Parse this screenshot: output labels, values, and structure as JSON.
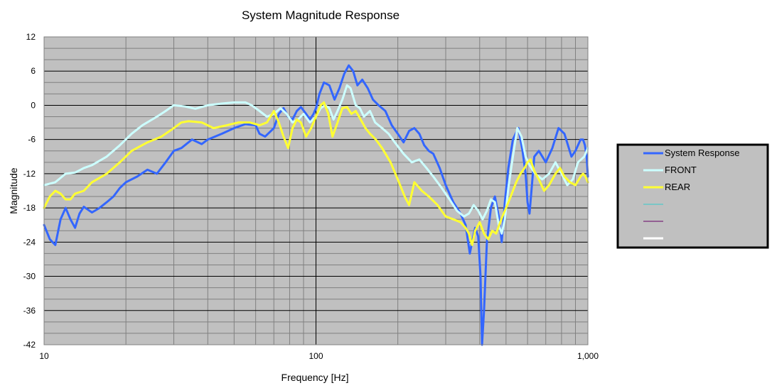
{
  "chart_data": {
    "type": "line",
    "title": "System Magnitude Response",
    "xlabel": "Frequency [Hz]",
    "ylabel": "Magnitude",
    "x_scale": "log",
    "xlim": [
      10,
      1000
    ],
    "ylim": [
      -42,
      12
    ],
    "x_ticks": [
      {
        "value": 10,
        "label": "10"
      },
      {
        "value": 100,
        "label": "100"
      },
      {
        "value": 1000,
        "label": "1,000"
      }
    ],
    "y_ticks": [
      {
        "value": 12,
        "label": "12"
      },
      {
        "value": 6,
        "label": "6"
      },
      {
        "value": 0,
        "label": "0"
      },
      {
        "value": -6,
        "label": "-6"
      },
      {
        "value": -12,
        "label": "-12"
      },
      {
        "value": -18,
        "label": "-18"
      },
      {
        "value": -24,
        "label": "-24"
      },
      {
        "value": -30,
        "label": "-30"
      },
      {
        "value": -36,
        "label": "-36"
      },
      {
        "value": -42,
        "label": "-42"
      }
    ],
    "grid": true,
    "plot_background": "#c0c0c0",
    "legend_position": "right",
    "series": [
      {
        "name": "System Response",
        "color": "#3366ff",
        "points": [
          [
            10,
            -21
          ],
          [
            10.5,
            -23.5
          ],
          [
            11,
            -24.5
          ],
          [
            11.5,
            -20
          ],
          [
            12,
            -18
          ],
          [
            12.5,
            -20
          ],
          [
            13,
            -21.5
          ],
          [
            13.5,
            -19
          ],
          [
            14,
            -17.8
          ],
          [
            15,
            -18.8
          ],
          [
            16,
            -18
          ],
          [
            17,
            -17
          ],
          [
            18,
            -16
          ],
          [
            19,
            -14.5
          ],
          [
            20,
            -13.5
          ],
          [
            22,
            -12.5
          ],
          [
            24,
            -11.3
          ],
          [
            26,
            -12
          ],
          [
            28,
            -10
          ],
          [
            30,
            -8
          ],
          [
            32,
            -7.5
          ],
          [
            35,
            -6
          ],
          [
            38,
            -6.8
          ],
          [
            40,
            -6
          ],
          [
            45,
            -5
          ],
          [
            50,
            -4
          ],
          [
            55,
            -3.3
          ],
          [
            60,
            -3.5
          ],
          [
            62,
            -5
          ],
          [
            65,
            -5.5
          ],
          [
            70,
            -4
          ],
          [
            73,
            -1.5
          ],
          [
            76,
            -0.5
          ],
          [
            79,
            -2
          ],
          [
            82,
            -2.5
          ],
          [
            85,
            -1
          ],
          [
            88,
            -0.3
          ],
          [
            92,
            -1.5
          ],
          [
            95,
            -2.5
          ],
          [
            98,
            -1.5
          ],
          [
            100,
            -0.5
          ],
          [
            103,
            2
          ],
          [
            107,
            4
          ],
          [
            112,
            3.5
          ],
          [
            117,
            1
          ],
          [
            122,
            3
          ],
          [
            127,
            5.5
          ],
          [
            132,
            7
          ],
          [
            137,
            6
          ],
          [
            142,
            3.5
          ],
          [
            148,
            4.5
          ],
          [
            155,
            3
          ],
          [
            162,
            1
          ],
          [
            170,
            0
          ],
          [
            180,
            -1
          ],
          [
            190,
            -3.5
          ],
          [
            200,
            -5
          ],
          [
            210,
            -6.5
          ],
          [
            220,
            -4.5
          ],
          [
            230,
            -4
          ],
          [
            240,
            -5
          ],
          [
            250,
            -7
          ],
          [
            260,
            -8
          ],
          [
            270,
            -8.5
          ],
          [
            285,
            -11
          ],
          [
            300,
            -14
          ],
          [
            320,
            -17
          ],
          [
            340,
            -19
          ],
          [
            355,
            -21
          ],
          [
            368,
            -26
          ],
          [
            375,
            -24
          ],
          [
            385,
            -21.5
          ],
          [
            395,
            -23
          ],
          [
            403,
            -30
          ],
          [
            408,
            -42
          ],
          [
            415,
            -36
          ],
          [
            425,
            -24
          ],
          [
            440,
            -18
          ],
          [
            455,
            -16
          ],
          [
            470,
            -19.5
          ],
          [
            482,
            -24
          ],
          [
            495,
            -17
          ],
          [
            510,
            -11
          ],
          [
            530,
            -6
          ],
          [
            555,
            -4
          ],
          [
            575,
            -8
          ],
          [
            590,
            -12
          ],
          [
            600,
            -17
          ],
          [
            610,
            -19
          ],
          [
            620,
            -15
          ],
          [
            635,
            -9
          ],
          [
            660,
            -8
          ],
          [
            700,
            -10
          ],
          [
            740,
            -7.5
          ],
          [
            780,
            -4
          ],
          [
            820,
            -5
          ],
          [
            870,
            -9
          ],
          [
            900,
            -8
          ],
          [
            940,
            -6
          ],
          [
            960,
            -6
          ],
          [
            975,
            -7
          ],
          [
            990,
            -9
          ],
          [
            1000,
            -12.5
          ]
        ]
      },
      {
        "name": "FRONT",
        "color": "#ccffff",
        "points": [
          [
            10,
            -14
          ],
          [
            11,
            -13.5
          ],
          [
            12,
            -12
          ],
          [
            13,
            -11.8
          ],
          [
            14,
            -11
          ],
          [
            15,
            -10.5
          ],
          [
            17,
            -9
          ],
          [
            19,
            -7
          ],
          [
            21,
            -5
          ],
          [
            23,
            -3.5
          ],
          [
            26,
            -2
          ],
          [
            28,
            -1
          ],
          [
            30,
            0
          ],
          [
            33,
            -0.2
          ],
          [
            36,
            -0.6
          ],
          [
            40,
            0
          ],
          [
            45,
            0.3
          ],
          [
            50,
            0.5
          ],
          [
            55,
            0.5
          ],
          [
            58,
            0
          ],
          [
            62,
            -1
          ],
          [
            66,
            -2
          ],
          [
            70,
            -1.5
          ],
          [
            74,
            -0.5
          ],
          [
            78,
            -1.5
          ],
          [
            82,
            -3
          ],
          [
            86,
            -2.5
          ],
          [
            90,
            -1.5
          ],
          [
            95,
            -3
          ],
          [
            100,
            -2
          ],
          [
            104,
            -0.5
          ],
          [
            108,
            0
          ],
          [
            112,
            -0.5
          ],
          [
            116,
            -2.5
          ],
          [
            120,
            -1
          ],
          [
            125,
            1
          ],
          [
            130,
            3.5
          ],
          [
            134,
            3
          ],
          [
            140,
            0
          ],
          [
            145,
            -0.5
          ],
          [
            150,
            -2
          ],
          [
            158,
            -1
          ],
          [
            165,
            -3
          ],
          [
            175,
            -4
          ],
          [
            185,
            -5
          ],
          [
            195,
            -6.5
          ],
          [
            210,
            -8.5
          ],
          [
            225,
            -10
          ],
          [
            240,
            -9.5
          ],
          [
            255,
            -11
          ],
          [
            270,
            -12.5
          ],
          [
            290,
            -14.5
          ],
          [
            310,
            -16.5
          ],
          [
            330,
            -18.5
          ],
          [
            350,
            -19.5
          ],
          [
            365,
            -19
          ],
          [
            380,
            -17.5
          ],
          [
            395,
            -18.5
          ],
          [
            410,
            -20
          ],
          [
            425,
            -18.5
          ],
          [
            440,
            -16.5
          ],
          [
            455,
            -17
          ],
          [
            470,
            -21
          ],
          [
            482,
            -22.5
          ],
          [
            495,
            -20
          ],
          [
            510,
            -14.5
          ],
          [
            530,
            -9
          ],
          [
            550,
            -4
          ],
          [
            570,
            -5.5
          ],
          [
            590,
            -9
          ],
          [
            610,
            -10.5
          ],
          [
            640,
            -12
          ],
          [
            680,
            -13
          ],
          [
            720,
            -12
          ],
          [
            760,
            -10
          ],
          [
            800,
            -12
          ],
          [
            840,
            -14
          ],
          [
            880,
            -13
          ],
          [
            920,
            -10
          ],
          [
            970,
            -9
          ],
          [
            1000,
            -7.5
          ]
        ]
      },
      {
        "name": "REAR",
        "color": "#ffff33",
        "points": [
          [
            10,
            -18
          ],
          [
            10.5,
            -16
          ],
          [
            11,
            -15
          ],
          [
            11.5,
            -15.5
          ],
          [
            12,
            -16.5
          ],
          [
            12.5,
            -16.5
          ],
          [
            13,
            -15.5
          ],
          [
            14,
            -15
          ],
          [
            15,
            -13.5
          ],
          [
            17,
            -12
          ],
          [
            19,
            -10
          ],
          [
            21,
            -8
          ],
          [
            24,
            -6.5
          ],
          [
            27,
            -5.5
          ],
          [
            30,
            -4
          ],
          [
            32,
            -3
          ],
          [
            34,
            -2.8
          ],
          [
            38,
            -3
          ],
          [
            42,
            -4
          ],
          [
            47,
            -3.5
          ],
          [
            52,
            -3
          ],
          [
            57,
            -3
          ],
          [
            62,
            -3.5
          ],
          [
            66,
            -3
          ],
          [
            70,
            -1
          ],
          [
            73,
            -3
          ],
          [
            76,
            -5.5
          ],
          [
            79,
            -7.5
          ],
          [
            82,
            -4
          ],
          [
            85,
            -2.5
          ],
          [
            88,
            -3
          ],
          [
            92,
            -5.5
          ],
          [
            96,
            -4
          ],
          [
            100,
            -2
          ],
          [
            104,
            0
          ],
          [
            107,
            0.5
          ],
          [
            111,
            -1.5
          ],
          [
            115,
            -5.5
          ],
          [
            120,
            -3
          ],
          [
            125,
            -0.5
          ],
          [
            130,
            -0.3
          ],
          [
            135,
            -1.5
          ],
          [
            140,
            -1
          ],
          [
            146,
            -2.5
          ],
          [
            152,
            -4
          ],
          [
            158,
            -5
          ],
          [
            166,
            -6
          ],
          [
            175,
            -7.5
          ],
          [
            188,
            -10
          ],
          [
            200,
            -13
          ],
          [
            212,
            -16
          ],
          [
            220,
            -17.5
          ],
          [
            230,
            -13.5
          ],
          [
            245,
            -15
          ],
          [
            260,
            -16
          ],
          [
            280,
            -17.5
          ],
          [
            300,
            -19.5
          ],
          [
            320,
            -20
          ],
          [
            340,
            -20.5
          ],
          [
            355,
            -21.5
          ],
          [
            365,
            -22.5
          ],
          [
            375,
            -24.5
          ],
          [
            385,
            -22
          ],
          [
            400,
            -20.5
          ],
          [
            415,
            -22.5
          ],
          [
            430,
            -23.5
          ],
          [
            445,
            -22
          ],
          [
            460,
            -22.5
          ],
          [
            480,
            -20
          ],
          [
            500,
            -18
          ],
          [
            520,
            -16
          ],
          [
            545,
            -13.5
          ],
          [
            565,
            -12
          ],
          [
            585,
            -11
          ],
          [
            600,
            -10
          ],
          [
            615,
            -9.5
          ],
          [
            635,
            -11.5
          ],
          [
            660,
            -13
          ],
          [
            690,
            -15
          ],
          [
            720,
            -14
          ],
          [
            760,
            -12
          ],
          [
            790,
            -11
          ],
          [
            820,
            -12.5
          ],
          [
            860,
            -13.5
          ],
          [
            900,
            -14
          ],
          [
            940,
            -12.5
          ],
          [
            960,
            -12
          ],
          [
            980,
            -12.5
          ],
          [
            1000,
            -13.5
          ]
        ]
      }
    ],
    "legend_extra_swatch_colors": [
      "#33cccc",
      "#660066",
      "#ffffff"
    ]
  }
}
